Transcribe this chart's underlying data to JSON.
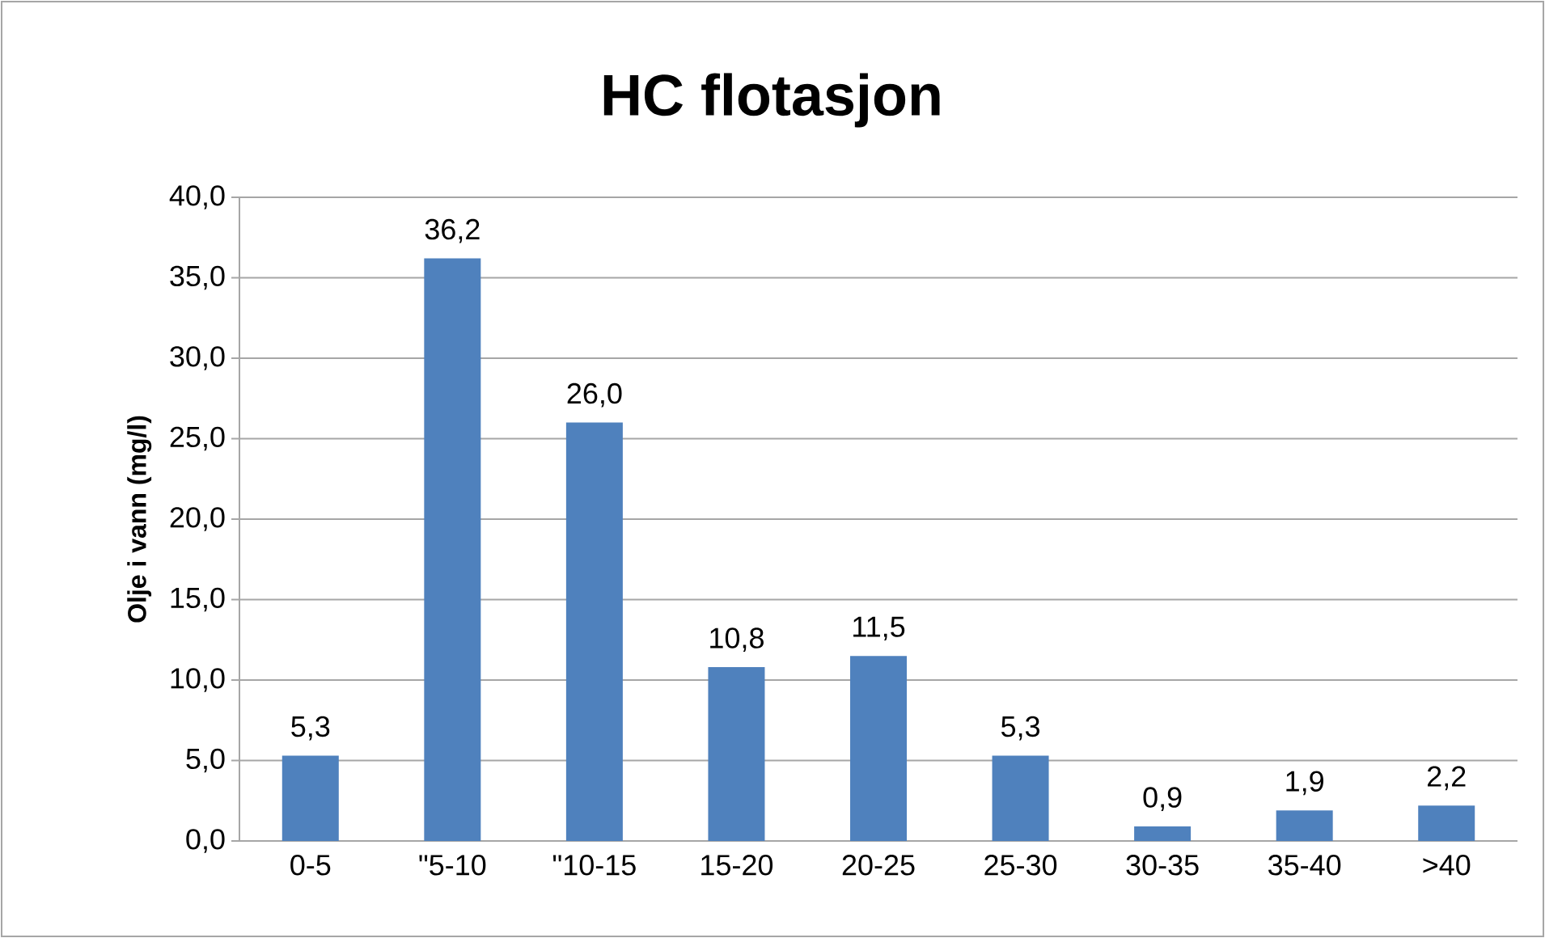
{
  "chart_data": {
    "type": "bar",
    "title": "HC flotasjon",
    "ylabel": "Olje i vann (mg/l)",
    "categories": [
      "0-5",
      "\"5-10",
      "\"10-15",
      "15-20",
      "20-25",
      "25-30",
      "30-35",
      "35-40",
      ">40"
    ],
    "values": [
      5.3,
      36.2,
      26.0,
      10.8,
      11.5,
      5.3,
      0.9,
      1.9,
      2.2
    ],
    "value_labels": [
      "5,3",
      "36,2",
      "26,0",
      "10,8",
      "11,5",
      "5,3",
      "0,9",
      "1,9",
      "2,2"
    ],
    "color": "#4f81bd",
    "ylim": [
      0,
      40
    ],
    "yticks": [
      {
        "value": 0,
        "label": "0,0"
      },
      {
        "value": 5,
        "label": "5,0"
      },
      {
        "value": 10,
        "label": "10,0"
      },
      {
        "value": 15,
        "label": "15,0"
      },
      {
        "value": 20,
        "label": "20,0"
      },
      {
        "value": 25,
        "label": "25,0"
      },
      {
        "value": 30,
        "label": "30,0"
      },
      {
        "value": 35,
        "label": "35,0"
      },
      {
        "value": 40,
        "label": "40,0"
      }
    ],
    "grid": "y"
  }
}
